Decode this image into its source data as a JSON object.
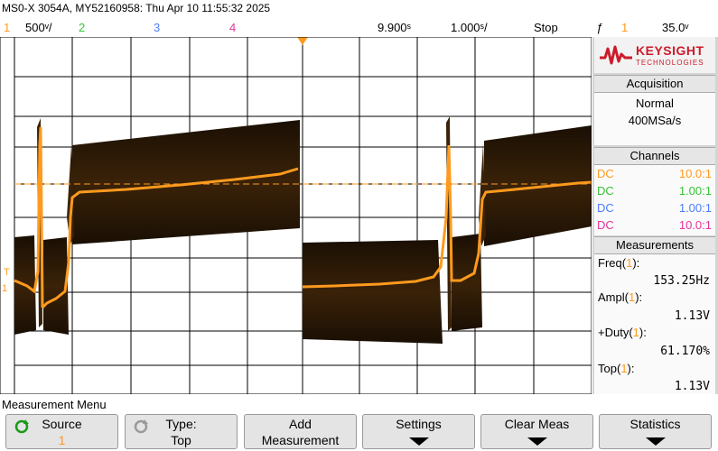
{
  "header": {
    "title": "MS0-X 3054A, MY52160958: Thu Apr 10 11:55:32 2025"
  },
  "status": {
    "ch1_num": "1",
    "ch1_scale": "500ᵛ/",
    "ch2_num": "2",
    "ch3_num": "3",
    "ch4_num": "4",
    "delay": "9.900ˢ",
    "timebase": "1.000ˢ/",
    "run_state": "Stop",
    "trigger_icon": "ƒ",
    "trigger_ch": "1",
    "trigger_level": "35.0ᵛ"
  },
  "colors": {
    "ch1": "#ff9a1e",
    "ch2": "#36c436",
    "ch3": "#4d7dff",
    "ch4": "#e6339a",
    "brand": "#cc1b2b"
  },
  "logo": {
    "brand": "KEYSIGHT",
    "sub": "TECHNOLOGIES"
  },
  "acquisition": {
    "title": "Acquisition",
    "mode": "Normal",
    "rate": "400MSa/s"
  },
  "channels": {
    "title": "Channels",
    "rows": [
      {
        "coupling": "DC",
        "probe": "10.0:1"
      },
      {
        "coupling": "DC",
        "probe": "1.00:1"
      },
      {
        "coupling": "DC",
        "probe": "1.00:1"
      },
      {
        "coupling": "DC",
        "probe": "10.0:1"
      }
    ]
  },
  "measurements": {
    "title": "Measurements",
    "items": [
      {
        "name": "Freq",
        "src": "1",
        "value": "153.25Hz"
      },
      {
        "name": "Ampl",
        "src": "1",
        "value": "1.13V"
      },
      {
        "name": "+Duty",
        "src": "1",
        "value": "61.170%"
      },
      {
        "name": "Top",
        "src": "1",
        "value": "1.13V"
      }
    ]
  },
  "menu": {
    "title": "Measurement Menu",
    "keys": [
      {
        "l1": "Source",
        "l2": "1"
      },
      {
        "l1": "Type:",
        "l2": "Top"
      },
      {
        "l1": "Add",
        "l2": "Measurement"
      },
      {
        "l1": "Settings",
        "l2": ""
      },
      {
        "l1": "Clear Meas",
        "l2": ""
      },
      {
        "l1": "Statistics",
        "l2": ""
      }
    ]
  }
}
